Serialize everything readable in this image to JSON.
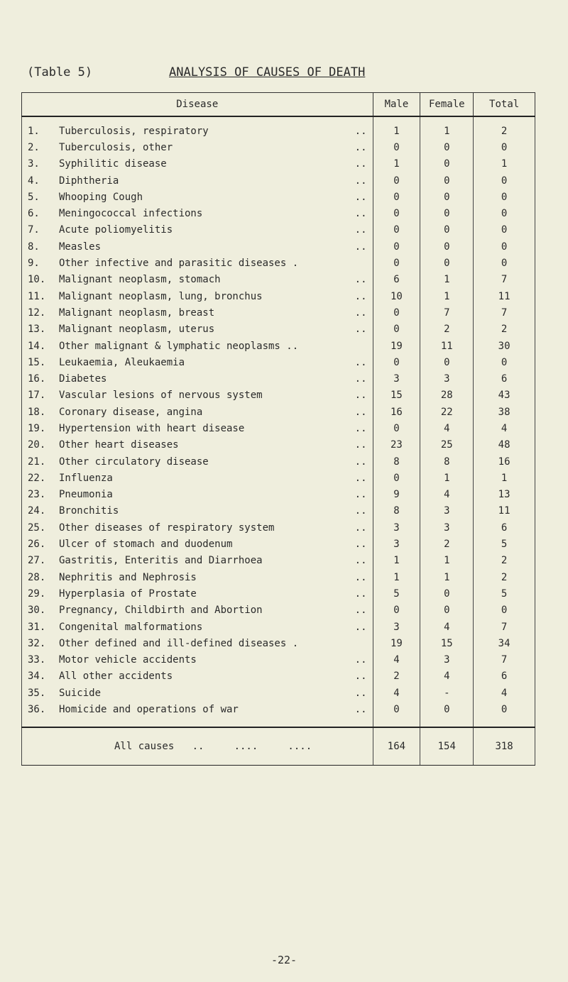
{
  "heading": {
    "label": "(Table 5)",
    "title": "ANALYSIS OF CAUSES OF DEATH"
  },
  "columns": [
    "Disease",
    "Male",
    "Female",
    "Total"
  ],
  "rows": [
    {
      "no": "1.",
      "disease": "Tuberculosis, respiratory",
      "dots": "..",
      "male": "1",
      "female": "1",
      "total": "2"
    },
    {
      "no": "2.",
      "disease": "Tuberculosis, other",
      "dots": "..",
      "male": "0",
      "female": "0",
      "total": "0"
    },
    {
      "no": "3.",
      "disease": "Syphilitic disease",
      "dots": "..",
      "male": "1",
      "female": "0",
      "total": "1"
    },
    {
      "no": "4.",
      "disease": "Diphtheria",
      "dots": "..",
      "male": "0",
      "female": "0",
      "total": "0"
    },
    {
      "no": "5.",
      "disease": "Whooping Cough",
      "dots": "..",
      "male": "0",
      "female": "0",
      "total": "0"
    },
    {
      "no": "6.",
      "disease": "Meningococcal infections",
      "dots": "..",
      "male": "0",
      "female": "0",
      "total": "0"
    },
    {
      "no": "7.",
      "disease": "Acute poliomyelitis",
      "dots": "..",
      "male": "0",
      "female": "0",
      "total": "0"
    },
    {
      "no": "8.",
      "disease": "Measles",
      "dots": "..",
      "male": "0",
      "female": "0",
      "total": "0"
    },
    {
      "no": "9.",
      "disease": "Other infective and parasitic diseases .",
      "dots": "",
      "male": "0",
      "female": "0",
      "total": "0"
    },
    {
      "no": "10.",
      "disease": "Malignant neoplasm, stomach",
      "dots": "..",
      "male": "6",
      "female": "1",
      "total": "7"
    },
    {
      "no": "11.",
      "disease": "Malignant neoplasm, lung, bronchus",
      "dots": "..",
      "male": "10",
      "female": "1",
      "total": "11"
    },
    {
      "no": "12.",
      "disease": "Malignant neoplasm, breast",
      "dots": "..",
      "male": "0",
      "female": "7",
      "total": "7"
    },
    {
      "no": "13.",
      "disease": "Malignant neoplasm, uterus",
      "dots": "..",
      "male": "0",
      "female": "2",
      "total": "2"
    },
    {
      "no": "14.",
      "disease": "Other malignant & lymphatic neoplasms ..",
      "dots": "",
      "male": "19",
      "female": "11",
      "total": "30"
    },
    {
      "no": "15.",
      "disease": "Leukaemia, Aleukaemia",
      "dots": "..",
      "male": "0",
      "female": "0",
      "total": "0"
    },
    {
      "no": "16.",
      "disease": "Diabetes",
      "dots": "..",
      "male": "3",
      "female": "3",
      "total": "6"
    },
    {
      "no": "17.",
      "disease": "Vascular lesions of nervous system",
      "dots": "..",
      "male": "15",
      "female": "28",
      "total": "43"
    },
    {
      "no": "18.",
      "disease": "Coronary disease, angina",
      "dots": "..",
      "male": "16",
      "female": "22",
      "total": "38"
    },
    {
      "no": "19.",
      "disease": "Hypertension with heart disease",
      "dots": "..",
      "male": "0",
      "female": "4",
      "total": "4"
    },
    {
      "no": "20.",
      "disease": "Other heart diseases",
      "dots": "..",
      "male": "23",
      "female": "25",
      "total": "48"
    },
    {
      "no": "21.",
      "disease": "Other circulatory disease",
      "dots": "..",
      "male": "8",
      "female": "8",
      "total": "16"
    },
    {
      "no": "22.",
      "disease": "Influenza",
      "dots": "..",
      "male": "0",
      "female": "1",
      "total": "1"
    },
    {
      "no": "23.",
      "disease": "Pneumonia",
      "dots": "..",
      "male": "9",
      "female": "4",
      "total": "13"
    },
    {
      "no": "24.",
      "disease": "Bronchitis",
      "dots": "..",
      "male": "8",
      "female": "3",
      "total": "11"
    },
    {
      "no": "25.",
      "disease": "Other diseases of respiratory system",
      "dots": "..",
      "male": "3",
      "female": "3",
      "total": "6"
    },
    {
      "no": "26.",
      "disease": "Ulcer of stomach and duodenum",
      "dots": "..",
      "male": "3",
      "female": "2",
      "total": "5"
    },
    {
      "no": "27.",
      "disease": "Gastritis, Enteritis and Diarrhoea",
      "dots": "..",
      "male": "1",
      "female": "1",
      "total": "2"
    },
    {
      "no": "28.",
      "disease": "Nephritis and Nephrosis",
      "dots": "..",
      "male": "1",
      "female": "1",
      "total": "2"
    },
    {
      "no": "29.",
      "disease": "Hyperplasia of Prostate",
      "dots": "..",
      "male": "5",
      "female": "0",
      "total": "5"
    },
    {
      "no": "30.",
      "disease": "Pregnancy, Childbirth and Abortion",
      "dots": "..",
      "male": "0",
      "female": "0",
      "total": "0"
    },
    {
      "no": "31.",
      "disease": "Congenital malformations",
      "dots": "..",
      "male": "3",
      "female": "4",
      "total": "7"
    },
    {
      "no": "32.",
      "disease": "Other defined and ill-defined diseases .",
      "dots": "",
      "male": "19",
      "female": "15",
      "total": "34"
    },
    {
      "no": "33.",
      "disease": "Motor vehicle accidents",
      "dots": "..",
      "male": "4",
      "female": "3",
      "total": "7"
    },
    {
      "no": "34.",
      "disease": "All other accidents",
      "dots": "..",
      "male": "2",
      "female": "4",
      "total": "6"
    },
    {
      "no": "35.",
      "disease": "Suicide",
      "dots": "..",
      "male": "4",
      "female": "-",
      "total": "4"
    },
    {
      "no": "36.",
      "disease": "Homicide and operations of war",
      "dots": "..",
      "male": "0",
      "female": "0",
      "total": "0"
    }
  ],
  "total_row": {
    "label": "All causes   ..     ....     ....",
    "male": "164",
    "female": "154",
    "total": "318"
  },
  "page_number": "-22-"
}
